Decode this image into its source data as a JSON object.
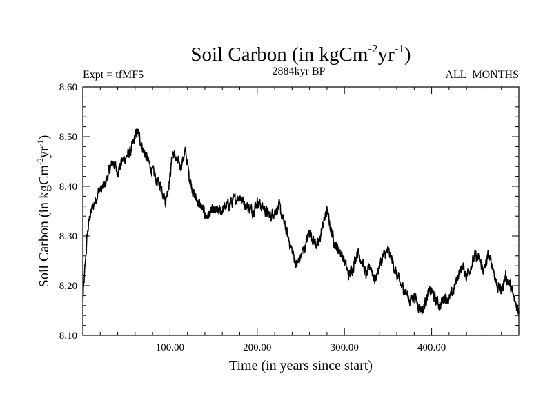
{
  "header": {
    "title_main": "Soil Carbon (in kgCm",
    "title_exp1": "-2",
    "title_mid": "yr",
    "title_exp2": "-1",
    "title_end": ")",
    "expt": "Expt = tfMF5",
    "period": "2884kyr BP",
    "months": "ALL_MONTHS"
  },
  "axes": {
    "x_label": "Time (in years since start)",
    "y_label_main": "Soil Carbon (in kgCm",
    "y_label_exp1": "-2",
    "y_label_mid": "yr",
    "y_label_exp2": "-1",
    "y_label_end": ")"
  },
  "chart_data": {
    "type": "line",
    "title": "Soil Carbon (in kgCm-2yr-1)",
    "xlabel": "Time (in years since start)",
    "ylabel": "Soil Carbon (in kgCm-2yr-1)",
    "xlim": [
      0,
      500
    ],
    "ylim": [
      8.1,
      8.6
    ],
    "x_ticks": [
      100,
      200,
      300,
      400
    ],
    "x_tick_labels": [
      "100.00",
      "200.00",
      "300.00",
      "400.00"
    ],
    "y_ticks": [
      8.1,
      8.2,
      8.3,
      8.4,
      8.5,
      8.6
    ],
    "y_tick_labels": [
      "8.10",
      "8.20",
      "8.30",
      "8.40",
      "8.50",
      "8.60"
    ],
    "series": [
      {
        "name": "Soil Carbon",
        "color": "#000000",
        "x": [
          0,
          2,
          5,
          8,
          12,
          18,
          25,
          30,
          35,
          40,
          45,
          50,
          55,
          60,
          63,
          68,
          75,
          80,
          85,
          90,
          95,
          100,
          103,
          108,
          112,
          118,
          122,
          128,
          135,
          142,
          150,
          158,
          165,
          172,
          180,
          188,
          195,
          200,
          205,
          210,
          215,
          220,
          225,
          230,
          235,
          240,
          245,
          250,
          255,
          260,
          265,
          270,
          275,
          280,
          285,
          290,
          295,
          300,
          305,
          310,
          315,
          320,
          325,
          330,
          335,
          340,
          345,
          350,
          355,
          360,
          365,
          370,
          375,
          380,
          385,
          390,
          395,
          400,
          405,
          410,
          415,
          420,
          425,
          430,
          435,
          440,
          445,
          450,
          455,
          460,
          465,
          470,
          475,
          480,
          485,
          490,
          495,
          500
        ],
        "y": [
          8.17,
          8.22,
          8.3,
          8.34,
          8.36,
          8.39,
          8.4,
          8.43,
          8.45,
          8.43,
          8.45,
          8.46,
          8.47,
          8.5,
          8.51,
          8.48,
          8.45,
          8.43,
          8.41,
          8.4,
          8.37,
          8.42,
          8.47,
          8.45,
          8.44,
          8.47,
          8.42,
          8.38,
          8.36,
          8.34,
          8.35,
          8.35,
          8.36,
          8.37,
          8.38,
          8.36,
          8.35,
          8.37,
          8.36,
          8.35,
          8.34,
          8.35,
          8.36,
          8.33,
          8.3,
          8.27,
          8.24,
          8.26,
          8.28,
          8.31,
          8.29,
          8.28,
          8.32,
          8.35,
          8.31,
          8.28,
          8.27,
          8.25,
          8.22,
          8.24,
          8.27,
          8.25,
          8.22,
          8.24,
          8.21,
          8.24,
          8.26,
          8.27,
          8.25,
          8.22,
          8.2,
          8.19,
          8.17,
          8.18,
          8.16,
          8.15,
          8.18,
          8.19,
          8.17,
          8.16,
          8.18,
          8.17,
          8.19,
          8.22,
          8.24,
          8.22,
          8.24,
          8.26,
          8.25,
          8.23,
          8.26,
          8.24,
          8.2,
          8.19,
          8.22,
          8.2,
          8.17,
          8.15
        ]
      }
    ]
  }
}
